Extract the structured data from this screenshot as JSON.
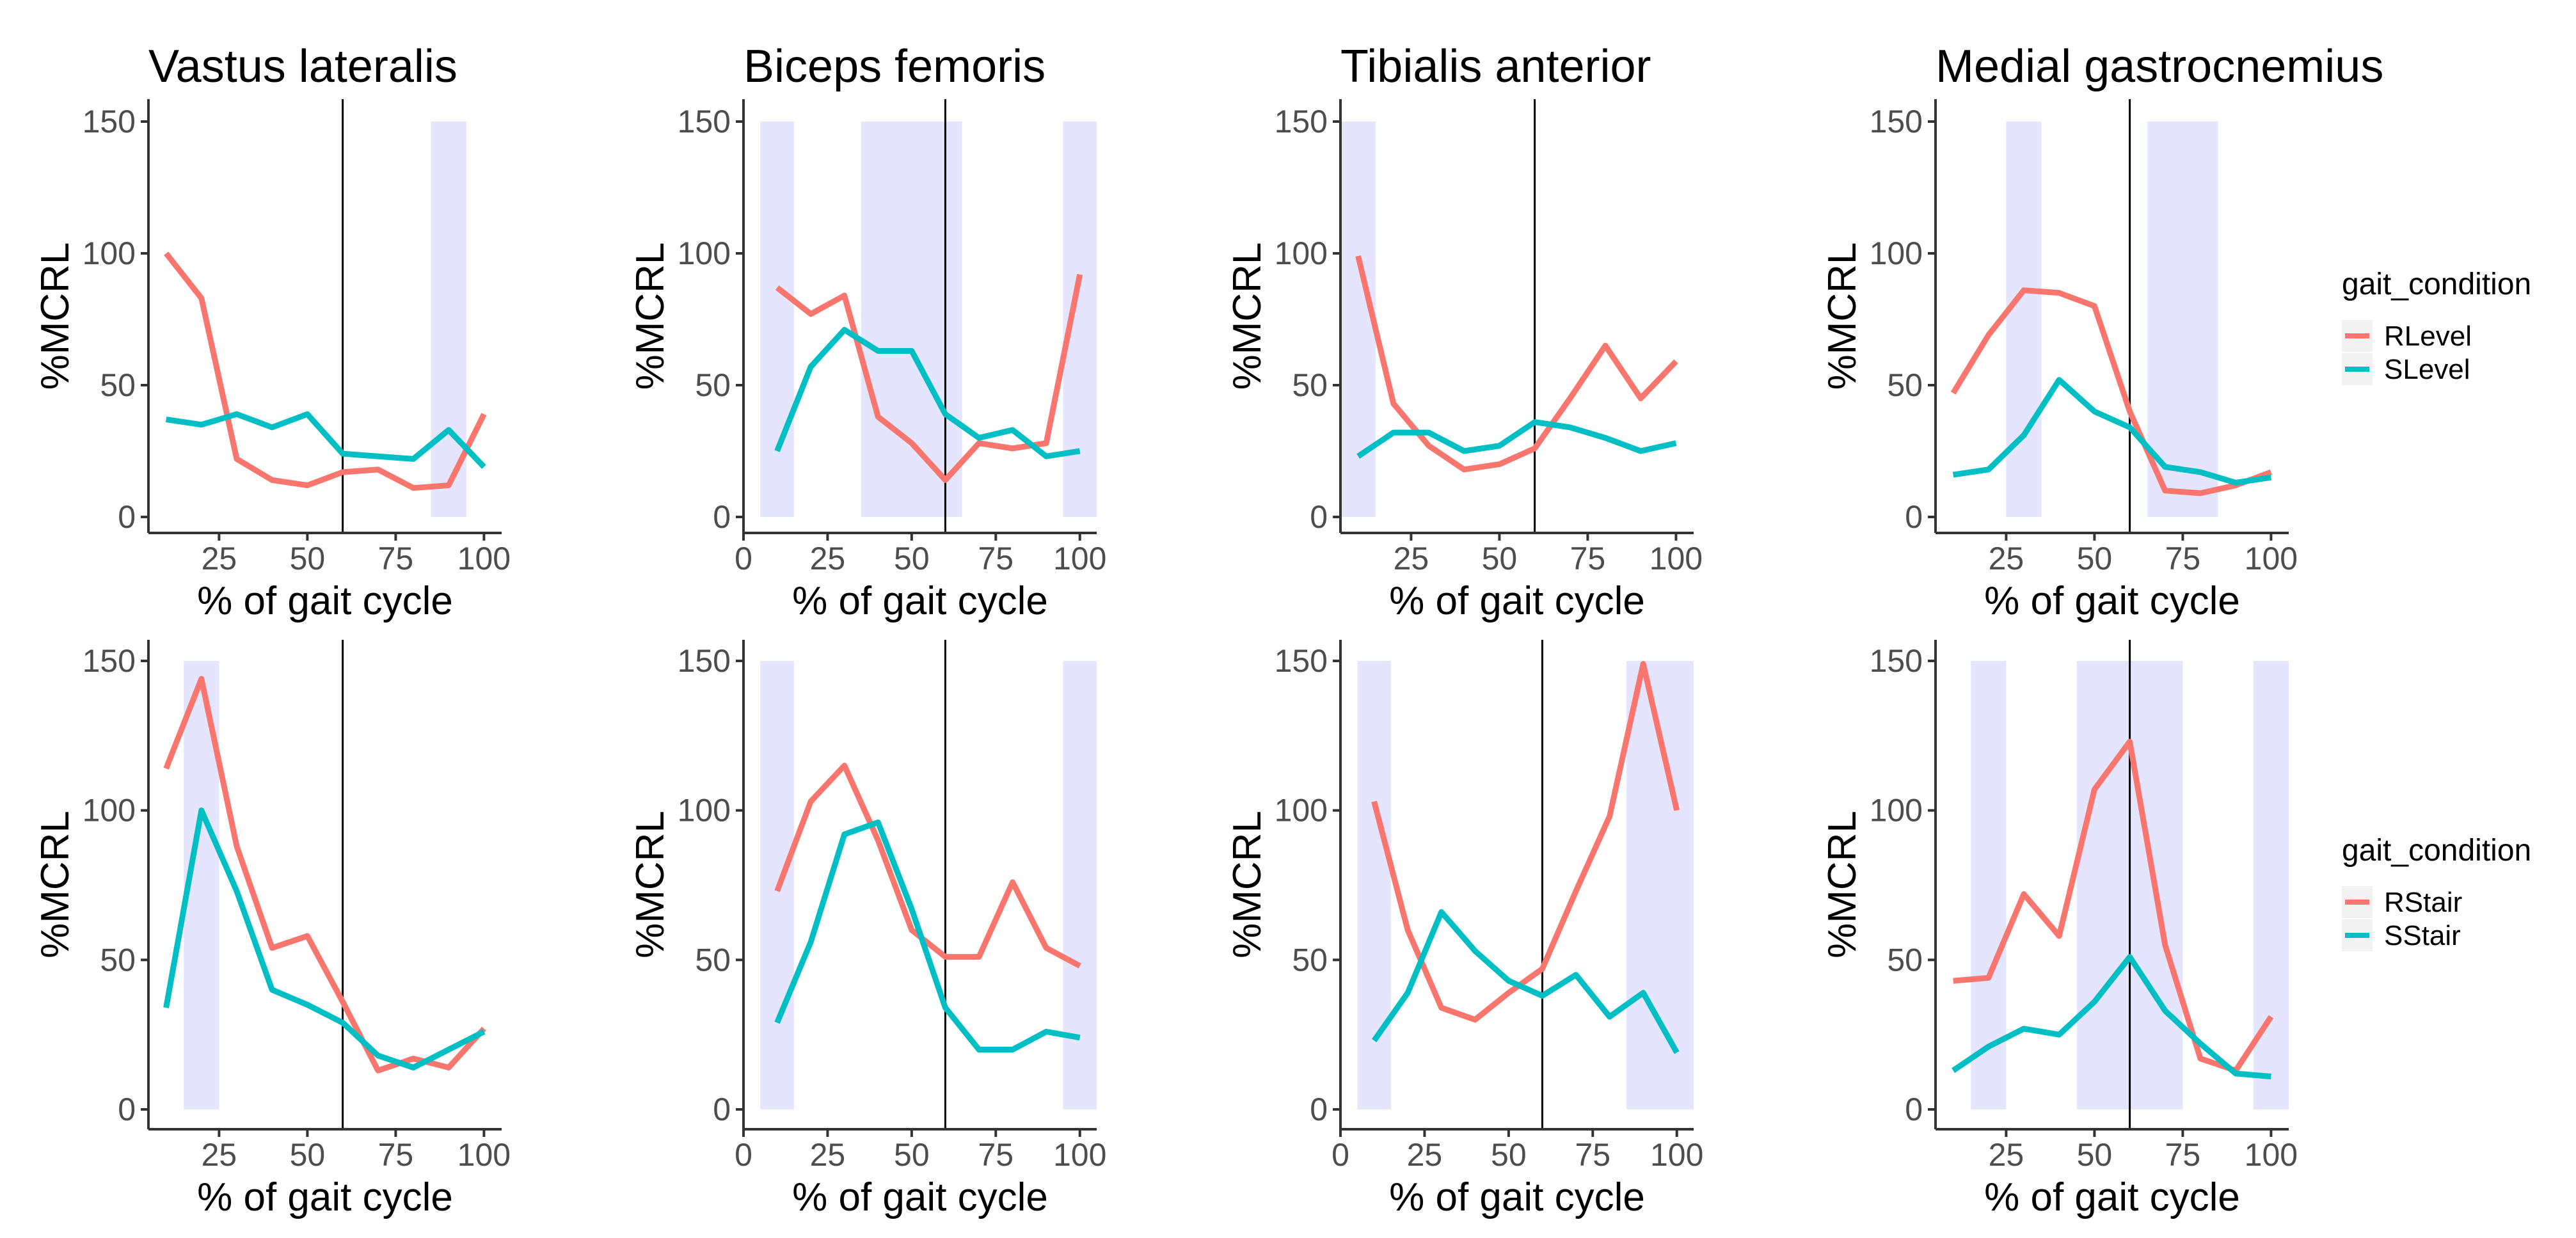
{
  "figure": {
    "legend_top": {
      "title": "gait_condition",
      "entries": [
        {
          "label": "RLevel",
          "color": "#F8766D"
        },
        {
          "label": "SLevel",
          "color": "#00BFC4"
        }
      ]
    },
    "legend_bottom": {
      "title": "gait_condition",
      "entries": [
        {
          "label": "RStair",
          "color": "#F8766D"
        },
        {
          "label": "SStair",
          "color": "#00BFC4"
        }
      ]
    },
    "colors": {
      "series_1": "#F8766D",
      "series_2": "#00BFC4",
      "band": "#E5E5FF",
      "vline": "#000000"
    }
  },
  "chart_data": [
    {
      "id": "vl-level",
      "type": "line",
      "title": "Vastus lateralis",
      "xlabel": "% of gait cycle",
      "ylabel": "%MCRL",
      "xlim": [
        5,
        105
      ],
      "ylim": [
        0,
        150
      ],
      "xticks": [
        25,
        50,
        75,
        100
      ],
      "yticks": [
        0,
        50,
        100,
        150
      ],
      "vline": 60,
      "bands": [
        [
          85,
          95
        ]
      ],
      "x": [
        10,
        20,
        30,
        40,
        50,
        60,
        70,
        80,
        90,
        100
      ],
      "series": [
        {
          "name": "RLevel",
          "values": [
            100,
            83,
            22,
            14,
            12,
            17,
            18,
            11,
            12,
            39
          ]
        },
        {
          "name": "SLevel",
          "values": [
            37,
            35,
            39,
            34,
            39,
            24,
            23,
            22,
            33,
            19
          ]
        }
      ]
    },
    {
      "id": "bf-level",
      "type": "line",
      "title": "Biceps femoris",
      "xlabel": "% of gait cycle",
      "ylabel": "%MCRL",
      "xlim": [
        0,
        105
      ],
      "ylim": [
        0,
        150
      ],
      "xticks": [
        0,
        25,
        50,
        75,
        100
      ],
      "yticks": [
        0,
        50,
        100,
        150
      ],
      "vline": 60,
      "bands": [
        [
          5,
          15
        ],
        [
          35,
          65
        ],
        [
          95,
          105
        ]
      ],
      "x": [
        10,
        20,
        30,
        40,
        50,
        60,
        70,
        80,
        90,
        100
      ],
      "series": [
        {
          "name": "RLevel",
          "values": [
            87,
            77,
            84,
            38,
            28,
            14,
            28,
            26,
            28,
            92
          ]
        },
        {
          "name": "SLevel",
          "values": [
            25,
            57,
            71,
            63,
            63,
            39,
            30,
            33,
            23,
            25
          ]
        }
      ]
    },
    {
      "id": "ta-level",
      "type": "line",
      "title": "Tibialis anterior",
      "xlabel": "% of gait cycle",
      "ylabel": "%MCRL",
      "xlim": [
        5,
        105
      ],
      "ylim": [
        0,
        150
      ],
      "xticks": [
        25,
        50,
        75,
        100
      ],
      "yticks": [
        0,
        50,
        100,
        150
      ],
      "vline": 60,
      "bands": [
        [
          5,
          15
        ]
      ],
      "x": [
        10,
        20,
        30,
        40,
        50,
        60,
        70,
        80,
        90,
        100
      ],
      "series": [
        {
          "name": "RLevel",
          "values": [
            99,
            43,
            27,
            18,
            20,
            26,
            45,
            65,
            45,
            59
          ]
        },
        {
          "name": "SLevel",
          "values": [
            23,
            32,
            32,
            25,
            27,
            36,
            34,
            30,
            25,
            28
          ]
        }
      ]
    },
    {
      "id": "mg-level",
      "type": "line",
      "title": "Medial gastrocnemius",
      "xlabel": "% of gait cycle",
      "ylabel": "%MCRL",
      "xlim": [
        5,
        105
      ],
      "ylim": [
        0,
        150
      ],
      "xticks": [
        25,
        50,
        75,
        100
      ],
      "yticks": [
        0,
        50,
        100,
        150
      ],
      "vline": 60,
      "bands": [
        [
          25,
          35
        ],
        [
          65,
          85
        ]
      ],
      "x": [
        10,
        20,
        30,
        40,
        50,
        60,
        70,
        80,
        90,
        100
      ],
      "series": [
        {
          "name": "RLevel",
          "values": [
            47,
            69,
            86,
            85,
            80,
            40,
            10,
            9,
            12,
            17
          ]
        },
        {
          "name": "SLevel",
          "values": [
            16,
            18,
            31,
            52,
            40,
            34,
            19,
            17,
            13,
            15
          ]
        }
      ]
    },
    {
      "id": "vl-stair",
      "type": "line",
      "title": "",
      "xlabel": "% of gait cycle",
      "ylabel": "%MCRL",
      "xlim": [
        5,
        105
      ],
      "ylim": [
        0,
        150
      ],
      "xticks": [
        25,
        50,
        75,
        100
      ],
      "yticks": [
        0,
        50,
        100,
        150
      ],
      "vline": 60,
      "bands": [
        [
          15,
          25
        ]
      ],
      "x": [
        10,
        20,
        30,
        40,
        50,
        60,
        70,
        80,
        90,
        100
      ],
      "series": [
        {
          "name": "RStair",
          "values": [
            114,
            144,
            88,
            54,
            58,
            36,
            13,
            17,
            14,
            27
          ]
        },
        {
          "name": "SStair",
          "values": [
            34,
            100,
            73,
            40,
            35,
            29,
            18,
            14,
            20,
            26
          ]
        }
      ]
    },
    {
      "id": "bf-stair",
      "type": "line",
      "title": "",
      "xlabel": "% of gait cycle",
      "ylabel": "%MCRL",
      "xlim": [
        0,
        105
      ],
      "ylim": [
        0,
        150
      ],
      "xticks": [
        0,
        25,
        50,
        75,
        100
      ],
      "yticks": [
        0,
        50,
        100,
        150
      ],
      "vline": 60,
      "bands": [
        [
          5,
          15
        ],
        [
          95,
          105
        ]
      ],
      "x": [
        10,
        20,
        30,
        40,
        50,
        60,
        70,
        80,
        90,
        100
      ],
      "series": [
        {
          "name": "RStair",
          "values": [
            73,
            103,
            115,
            90,
            60,
            51,
            51,
            76,
            54,
            48
          ]
        },
        {
          "name": "SStair",
          "values": [
            29,
            56,
            92,
            96,
            67,
            34,
            20,
            20,
            26,
            24
          ]
        }
      ]
    },
    {
      "id": "ta-stair",
      "type": "line",
      "title": "",
      "xlabel": "% of gait cycle",
      "ylabel": "%MCRL",
      "xlim": [
        0,
        105
      ],
      "ylim": [
        0,
        150
      ],
      "xticks": [
        0,
        25,
        50,
        75,
        100
      ],
      "yticks": [
        0,
        50,
        100,
        150
      ],
      "vline": 60,
      "bands": [
        [
          5,
          15
        ],
        [
          85,
          105
        ]
      ],
      "x": [
        10,
        20,
        30,
        40,
        50,
        60,
        70,
        80,
        90,
        100
      ],
      "series": [
        {
          "name": "RStair",
          "values": [
            103,
            60,
            34,
            30,
            39,
            47,
            73,
            98,
            149,
            100
          ]
        },
        {
          "name": "SStair",
          "values": [
            23,
            39,
            66,
            53,
            43,
            38,
            45,
            31,
            39,
            19
          ]
        }
      ]
    },
    {
      "id": "mg-stair",
      "type": "line",
      "title": "",
      "xlabel": "% of gait cycle",
      "ylabel": "%MCRL",
      "xlim": [
        5,
        105
      ],
      "ylim": [
        0,
        150
      ],
      "xticks": [
        25,
        50,
        75,
        100
      ],
      "yticks": [
        0,
        50,
        100,
        150
      ],
      "vline": 60,
      "bands": [
        [
          15,
          25
        ],
        [
          45,
          75
        ],
        [
          95,
          105
        ]
      ],
      "x": [
        10,
        20,
        30,
        40,
        50,
        60,
        70,
        80,
        90,
        100
      ],
      "series": [
        {
          "name": "RStair",
          "values": [
            43,
            44,
            72,
            58,
            107,
            123,
            55,
            17,
            13,
            31
          ]
        },
        {
          "name": "SStair",
          "values": [
            13,
            21,
            27,
            25,
            36,
            51,
            33,
            22,
            12,
            11
          ]
        }
      ]
    }
  ]
}
